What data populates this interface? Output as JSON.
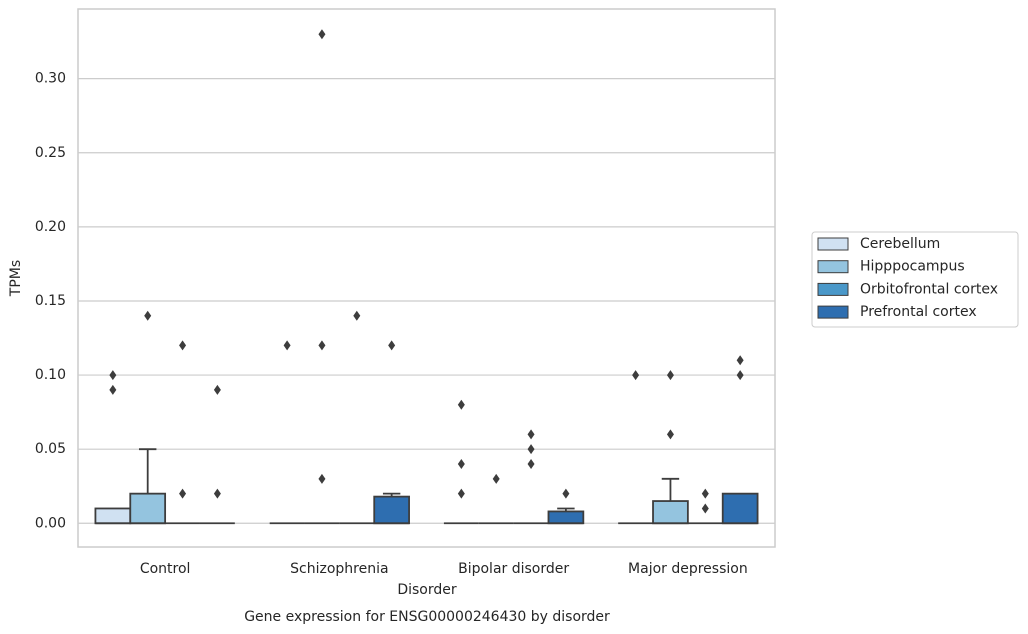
{
  "chart_data": {
    "type": "box",
    "title": "Gene expression for ENSG00000246430 by disorder",
    "x_label": "Disorder",
    "y_label": "TPMs",
    "categories": [
      "Control",
      "Schizophrenia",
      "Bipolar disorder",
      "Major depression"
    ],
    "ylim": [
      -0.016,
      0.347
    ],
    "yticks": [
      {
        "value": 0,
        "label": "0.00"
      },
      0.05,
      {
        "value": 0.1,
        "label": "0.10"
      },
      0.15,
      {
        "value": 0.2,
        "label": "0.20"
      },
      0.25,
      {
        "value": 0.3,
        "label": "0.30"
      }
    ],
    "grid": true,
    "legend": "right",
    "series": [
      {
        "name": "Cerebellum",
        "color": "#d0e1f2",
        "boxes": [
          {
            "whislo": 0,
            "q1": 0,
            "med": 0,
            "q3": 0.01,
            "whishi": 0.01,
            "fliers": [
              0.1,
              0.09
            ]
          },
          {
            "whislo": 0,
            "q1": 0,
            "med": 0,
            "q3": 0,
            "whishi": 0,
            "fliers": [
              0.12
            ]
          },
          {
            "whislo": 0,
            "q1": 0,
            "med": 0,
            "q3": 0,
            "whishi": 0,
            "fliers": [
              0.08,
              0.04,
              0.02
            ]
          },
          {
            "whislo": 0,
            "q1": 0,
            "med": 0,
            "q3": 0,
            "whishi": 0,
            "fliers": [
              0.1
            ]
          }
        ]
      },
      {
        "name": "Hipppocampus",
        "color": "#94c4df",
        "boxes": [
          {
            "whislo": 0,
            "q1": 0,
            "med": 0,
            "q3": 0.02,
            "whishi": 0.05,
            "fliers": [
              0.14
            ]
          },
          {
            "whislo": 0,
            "q1": 0,
            "med": 0,
            "q3": 0,
            "whishi": 0,
            "fliers": [
              0.33,
              0.12,
              0.03
            ]
          },
          {
            "whislo": 0,
            "q1": 0,
            "med": 0,
            "q3": 0,
            "whishi": 0,
            "fliers": [
              0.03
            ]
          },
          {
            "whislo": 0,
            "q1": 0,
            "med": 0,
            "q3": 0.015,
            "whishi": 0.03,
            "fliers": [
              0.1,
              0.06
            ]
          }
        ]
      },
      {
        "name": "Orbitofrontal cortex",
        "color": "#4a98c9",
        "boxes": [
          {
            "whislo": 0,
            "q1": 0,
            "med": 0,
            "q3": 0,
            "whishi": 0,
            "fliers": [
              0.12,
              0.02
            ]
          },
          {
            "whislo": 0,
            "q1": 0,
            "med": 0,
            "q3": 0,
            "whishi": 0,
            "fliers": [
              0.14
            ]
          },
          {
            "whislo": 0,
            "q1": 0,
            "med": 0,
            "q3": 0,
            "whishi": 0,
            "fliers": [
              0.06,
              0.05,
              0.04
            ]
          },
          {
            "whislo": 0,
            "q1": 0,
            "med": 0,
            "q3": 0,
            "whishi": 0,
            "fliers": [
              0.02,
              0.01
            ]
          }
        ]
      },
      {
        "name": "Prefrontal cortex",
        "color": "#2e6eb0",
        "boxes": [
          {
            "whislo": 0,
            "q1": 0,
            "med": 0,
            "q3": 0,
            "whishi": 0,
            "fliers": [
              0.09,
              0.02
            ]
          },
          {
            "whislo": 0,
            "q1": 0,
            "med": 0,
            "q3": 0.018,
            "whishi": 0.02,
            "fliers": [
              0.12
            ]
          },
          {
            "whislo": 0,
            "q1": 0,
            "med": 0,
            "q3": 0.008,
            "whishi": 0.01,
            "fliers": [
              0.02
            ]
          },
          {
            "whislo": 0,
            "q1": 0,
            "med": 0,
            "q3": 0.02,
            "whishi": 0.02,
            "fliers": [
              0.11,
              0.1
            ]
          }
        ]
      }
    ]
  }
}
